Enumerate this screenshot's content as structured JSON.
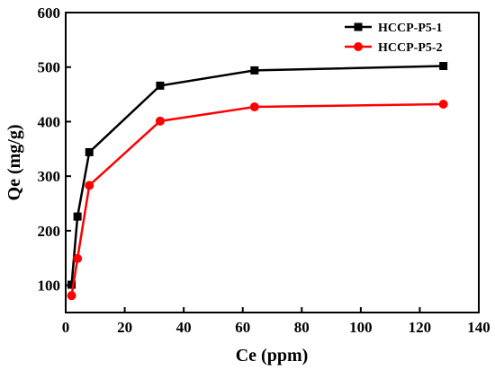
{
  "chart_data": {
    "type": "line",
    "xlabel": "Ce (ppm)",
    "ylabel": "Qe (mg/g)",
    "xlim": [
      0,
      140
    ],
    "ylim": [
      50,
      600
    ],
    "xticks": [
      0,
      20,
      40,
      60,
      80,
      100,
      120,
      140
    ],
    "yticks": [
      100,
      200,
      300,
      400,
      500,
      600
    ],
    "grid": false,
    "legend_position": "top-right",
    "series": [
      {
        "name": "HCCP-P5-1",
        "color": "#000000",
        "marker": "square",
        "x": [
          2,
          4,
          8,
          32,
          64,
          128
        ],
        "y": [
          101,
          226,
          344,
          466,
          494,
          502
        ]
      },
      {
        "name": "HCCP-P5-2",
        "color": "#ff0000",
        "marker": "circle",
        "x": [
          2,
          4,
          8,
          32,
          64,
          128
        ],
        "y": [
          81,
          149,
          283,
          401,
          427,
          432
        ]
      }
    ]
  }
}
